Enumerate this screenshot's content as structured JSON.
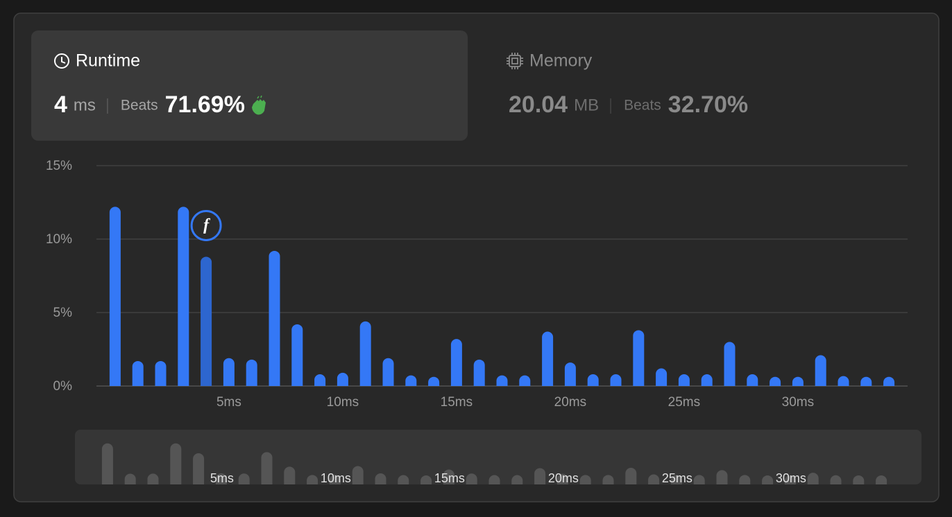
{
  "runtime": {
    "label": "Runtime",
    "value": "4",
    "unit": "ms",
    "beats_label": "Beats",
    "beats": "71.69%"
  },
  "memory": {
    "label": "Memory",
    "value": "20.04",
    "unit": "MB",
    "beats_label": "Beats",
    "beats": "32.70%"
  },
  "chart_data": {
    "type": "bar",
    "x": [
      0,
      1,
      2,
      3,
      4,
      5,
      6,
      7,
      8,
      9,
      10,
      11,
      12,
      13,
      14,
      15,
      16,
      17,
      18,
      19,
      20,
      21,
      22,
      23,
      24,
      25,
      26,
      27,
      28,
      29,
      30,
      31,
      32,
      33,
      34
    ],
    "values": [
      12.2,
      1.7,
      1.7,
      12.2,
      8.8,
      1.9,
      1.8,
      9.2,
      4.2,
      0.8,
      0.9,
      4.4,
      1.9,
      0.7,
      0.5,
      3.2,
      1.8,
      0.7,
      0.7,
      3.7,
      1.6,
      0.8,
      0.8,
      3.8,
      1.2,
      0.8,
      0.8,
      3.0,
      0.8,
      0.5,
      0.5,
      2.1,
      0.6,
      0.5,
      0.5
    ],
    "color": "#3478f6",
    "highlight_color": "#2d66cf",
    "highlight": 4,
    "marker_label": "f",
    "xlim": [
      -0.82,
      34.82
    ],
    "xticks": [
      {
        "value": 5,
        "label": "5ms"
      },
      {
        "value": 10,
        "label": "10ms"
      },
      {
        "value": 15,
        "label": "15ms"
      },
      {
        "value": 20,
        "label": "20ms"
      },
      {
        "value": 25,
        "label": "25ms"
      },
      {
        "value": 30,
        "label": "30ms"
      }
    ],
    "ylim": [
      0,
      15
    ],
    "yticks": [
      {
        "value": 0,
        "label": "0%"
      },
      {
        "value": 5,
        "label": "5%"
      },
      {
        "value": 10,
        "label": "10%"
      },
      {
        "value": 15,
        "label": "15%"
      }
    ],
    "grid": true
  }
}
